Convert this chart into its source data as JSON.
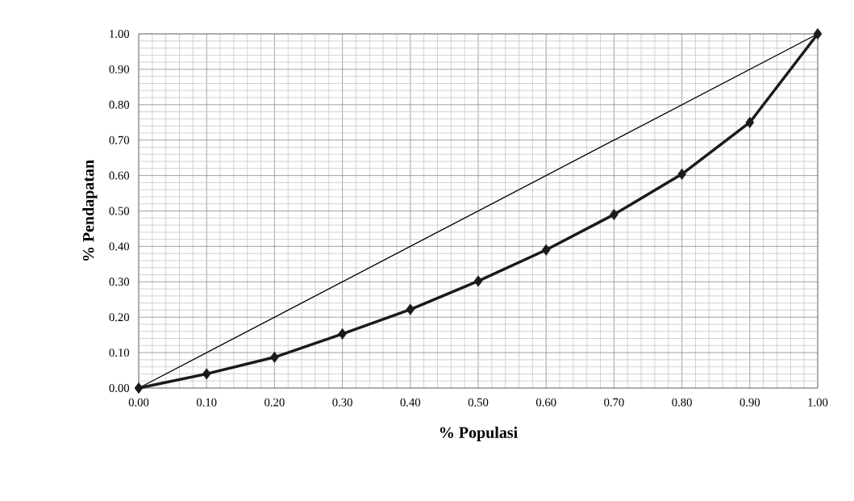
{
  "chart_data": {
    "type": "line",
    "xlabel": "% Populasi",
    "ylabel": "% Pendapatan",
    "xlim": [
      0,
      1
    ],
    "ylim": [
      0,
      1
    ],
    "xticks": [
      {
        "value": 0,
        "label": "0.00"
      },
      {
        "value": 0.1,
        "label": "0.10"
      },
      {
        "value": 0.2,
        "label": "0.20"
      },
      {
        "value": 0.3,
        "label": "0.30"
      },
      {
        "value": 0.4,
        "label": "0.40"
      },
      {
        "value": 0.5,
        "label": "0.50"
      },
      {
        "value": 0.6,
        "label": "0.60"
      },
      {
        "value": 0.7,
        "label": "0.70"
      },
      {
        "value": 0.8,
        "label": "0.80"
      },
      {
        "value": 0.9,
        "label": "0.90"
      },
      {
        "value": 1,
        "label": "1.00"
      }
    ],
    "yticks": [
      {
        "value": 0,
        "label": "0.00"
      },
      {
        "value": 0.1,
        "label": "0.10"
      },
      {
        "value": 0.2,
        "label": "0.20"
      },
      {
        "value": 0.3,
        "label": "0.30"
      },
      {
        "value": 0.4,
        "label": "0.40"
      },
      {
        "value": 0.5,
        "label": "0.50"
      },
      {
        "value": 0.6,
        "label": "0.60"
      },
      {
        "value": 0.7,
        "label": "0.70"
      },
      {
        "value": 0.8,
        "label": "0.80"
      },
      {
        "value": 0.9,
        "label": "0.90"
      },
      {
        "value": 1,
        "label": "1.00"
      }
    ],
    "grid": true,
    "marker": "diamond",
    "line_style": "solid",
    "x": [
      0,
      0.1,
      0.2,
      0.3,
      0.4,
      0.5,
      0.6,
      0.7,
      0.8,
      0.9,
      1
    ],
    "series": [
      {
        "color": "#000000",
        "x": [
          0,
          1
        ],
        "values": [
          0,
          1
        ],
        "marker": "none"
      },
      {
        "color": "#1a1a1a",
        "values": [
          0,
          0.04,
          0.087,
          0.153,
          0.222,
          0.302,
          0.39,
          0.49,
          0.604,
          0.75,
          1
        ]
      }
    ]
  }
}
